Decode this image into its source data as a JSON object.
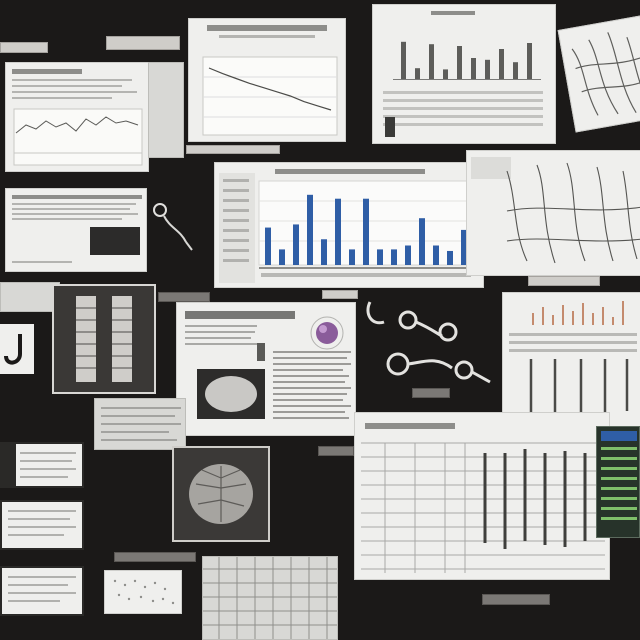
{
  "board": {
    "background": "#1b1918",
    "accent_bar": "#2f5ea6",
    "accent_purple": "#8a5c9a",
    "accent_green": "#7fbf6a"
  },
  "charts": [
    {
      "id": "top-center-bar-chart",
      "type": "bar",
      "values": [
        0.62,
        0.18,
        0.58,
        0.16,
        0.55,
        0.35,
        0.32,
        0.5,
        0.28,
        0.6
      ]
    },
    {
      "id": "main-bar-chart",
      "type": "bar",
      "values": [
        0.48,
        0.2,
        0.52,
        0.9,
        0.33,
        0.85,
        0.2,
        0.85,
        0.2,
        0.2,
        0.25,
        0.6,
        0.25,
        0.18,
        0.45
      ]
    },
    {
      "id": "decline-line-chart",
      "type": "line",
      "values": [
        0.9,
        0.82,
        0.75,
        0.68,
        0.62,
        0.56,
        0.5,
        0.42,
        0.36,
        0.3
      ]
    }
  ]
}
